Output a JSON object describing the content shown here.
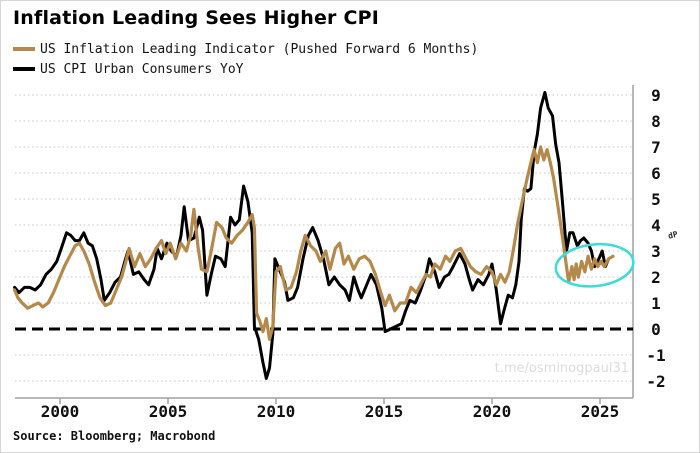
{
  "title": "Inflation Leading Sees Higher CPI",
  "legend": [
    {
      "label": "US Inflation Leading Indicator (Pushed Forward 6 Months)",
      "color": "#b5894a"
    },
    {
      "label": "US CPI Urban Consumers YoY",
      "color": "#000000"
    }
  ],
  "source": "Source: Bloomberg; Macrobond",
  "watermark": "t.me/osminogpaul31",
  "right_axis_glyph": "dP",
  "colors": {
    "tan_series": "#b5894a",
    "black_series": "#000000",
    "gridline": "#c4c4c4",
    "frame": "#a0a0a0",
    "highlight_ellipse": "#3ddbd9",
    "watermark": "#dcdcdc"
  },
  "chart_data": {
    "type": "line",
    "title": "Inflation Leading Sees Higher CPI",
    "xlabel": "",
    "ylabel": "",
    "x_ticks": [
      2000,
      2005,
      2010,
      2015,
      2020,
      2025
    ],
    "y_ticks": [
      9,
      8,
      7,
      6,
      5,
      4,
      3,
      2,
      1,
      0,
      -1,
      -2
    ],
    "xlim": [
      1997.9,
      2026.5
    ],
    "ylim": [
      -2.6,
      9.6
    ],
    "grid": "dotted horizontal gridlines at integers",
    "zero_line": "bold black dashed line at 0",
    "legend_position": "top-left",
    "highlight_ellipse": {
      "x_center_year": 2024.75,
      "y_center_value": 2.45,
      "rx_years": 1.8,
      "ry_values": 0.8,
      "color": "#3ddbd9"
    },
    "series": [
      {
        "name": "US CPI Urban Consumers YoY",
        "color": "#000000",
        "points": [
          [
            1997.9,
            1.6
          ],
          [
            1998.1,
            1.4
          ],
          [
            1998.35,
            1.6
          ],
          [
            1998.6,
            1.6
          ],
          [
            1998.85,
            1.5
          ],
          [
            1999.1,
            1.7
          ],
          [
            1999.35,
            2.1
          ],
          [
            1999.6,
            2.3
          ],
          [
            1999.85,
            2.6
          ],
          [
            2000.1,
            3.2
          ],
          [
            2000.3,
            3.7
          ],
          [
            2000.5,
            3.6
          ],
          [
            2000.7,
            3.4
          ],
          [
            2000.9,
            3.4
          ],
          [
            2001.1,
            3.7
          ],
          [
            2001.3,
            3.3
          ],
          [
            2001.5,
            3.2
          ],
          [
            2001.7,
            2.7
          ],
          [
            2001.9,
            1.9
          ],
          [
            2002.05,
            1.1
          ],
          [
            2002.3,
            1.4
          ],
          [
            2002.55,
            1.8
          ],
          [
            2002.8,
            2.0
          ],
          [
            2003.0,
            2.6
          ],
          [
            2003.15,
            3.0
          ],
          [
            2003.4,
            2.1
          ],
          [
            2003.65,
            2.2
          ],
          [
            2003.9,
            1.9
          ],
          [
            2004.1,
            1.7
          ],
          [
            2004.35,
            2.3
          ],
          [
            2004.5,
            3.1
          ],
          [
            2004.7,
            2.7
          ],
          [
            2004.95,
            3.3
          ],
          [
            2005.15,
            3.0
          ],
          [
            2005.4,
            2.8
          ],
          [
            2005.6,
            3.6
          ],
          [
            2005.75,
            4.7
          ],
          [
            2005.95,
            3.4
          ],
          [
            2006.2,
            3.5
          ],
          [
            2006.45,
            4.3
          ],
          [
            2006.6,
            3.8
          ],
          [
            2006.8,
            1.3
          ],
          [
            2007.0,
            2.1
          ],
          [
            2007.2,
            2.8
          ],
          [
            2007.45,
            2.7
          ],
          [
            2007.65,
            2.4
          ],
          [
            2007.9,
            4.3
          ],
          [
            2008.1,
            4.0
          ],
          [
            2008.3,
            4.2
          ],
          [
            2008.5,
            5.5
          ],
          [
            2008.7,
            4.9
          ],
          [
            2008.9,
            3.7
          ],
          [
            2009.0,
            0.1
          ],
          [
            2009.2,
            -0.4
          ],
          [
            2009.4,
            -1.3
          ],
          [
            2009.55,
            -1.9
          ],
          [
            2009.7,
            -1.5
          ],
          [
            2009.85,
            -0.2
          ],
          [
            2009.95,
            2.7
          ],
          [
            2010.15,
            2.3
          ],
          [
            2010.4,
            1.8
          ],
          [
            2010.55,
            1.1
          ],
          [
            2010.8,
            1.2
          ],
          [
            2011.0,
            1.6
          ],
          [
            2011.25,
            2.7
          ],
          [
            2011.5,
            3.6
          ],
          [
            2011.7,
            3.9
          ],
          [
            2011.95,
            3.4
          ],
          [
            2012.2,
            2.7
          ],
          [
            2012.45,
            1.7
          ],
          [
            2012.7,
            2.0
          ],
          [
            2012.95,
            1.7
          ],
          [
            2013.2,
            1.5
          ],
          [
            2013.4,
            1.1
          ],
          [
            2013.6,
            2.0
          ],
          [
            2013.8,
            1.5
          ],
          [
            2013.95,
            1.2
          ],
          [
            2014.15,
            1.6
          ],
          [
            2014.4,
            2.1
          ],
          [
            2014.65,
            1.7
          ],
          [
            2014.9,
            0.8
          ],
          [
            2015.05,
            -0.1
          ],
          [
            2015.3,
            0.0
          ],
          [
            2015.55,
            0.1
          ],
          [
            2015.8,
            0.2
          ],
          [
            2016.0,
            0.7
          ],
          [
            2016.2,
            1.1
          ],
          [
            2016.45,
            1.0
          ],
          [
            2016.7,
            1.5
          ],
          [
            2016.95,
            2.1
          ],
          [
            2017.1,
            2.7
          ],
          [
            2017.35,
            2.2
          ],
          [
            2017.55,
            1.6
          ],
          [
            2017.8,
            2.0
          ],
          [
            2018.0,
            2.1
          ],
          [
            2018.2,
            2.4
          ],
          [
            2018.5,
            2.9
          ],
          [
            2018.75,
            2.5
          ],
          [
            2018.95,
            1.9
          ],
          [
            2019.1,
            1.5
          ],
          [
            2019.35,
            1.9
          ],
          [
            2019.6,
            1.7
          ],
          [
            2019.85,
            2.1
          ],
          [
            2020.0,
            2.5
          ],
          [
            2020.2,
            1.5
          ],
          [
            2020.4,
            0.2
          ],
          [
            2020.55,
            0.7
          ],
          [
            2020.75,
            1.3
          ],
          [
            2020.95,
            1.2
          ],
          [
            2021.1,
            1.7
          ],
          [
            2021.25,
            2.6
          ],
          [
            2021.35,
            4.2
          ],
          [
            2021.5,
            5.4
          ],
          [
            2021.65,
            5.3
          ],
          [
            2021.8,
            5.4
          ],
          [
            2021.95,
            6.8
          ],
          [
            2022.1,
            7.5
          ],
          [
            2022.25,
            8.5
          ],
          [
            2022.45,
            9.1
          ],
          [
            2022.6,
            8.5
          ],
          [
            2022.8,
            8.2
          ],
          [
            2022.95,
            7.1
          ],
          [
            2023.1,
            6.4
          ],
          [
            2023.25,
            5.0
          ],
          [
            2023.45,
            3.0
          ],
          [
            2023.6,
            3.7
          ],
          [
            2023.75,
            3.7
          ],
          [
            2023.95,
            3.2
          ],
          [
            2024.1,
            3.4
          ],
          [
            2024.25,
            3.5
          ],
          [
            2024.45,
            3.3
          ],
          [
            2024.6,
            3.0
          ],
          [
            2024.75,
            2.4
          ],
          [
            2024.95,
            2.7
          ],
          [
            2025.1,
            3.0
          ],
          [
            2025.25,
            2.4
          ],
          [
            2025.4,
            2.7
          ]
        ]
      },
      {
        "name": "US Inflation Leading Indicator (Pushed Forward 6 Months)",
        "color": "#b5894a",
        "points": [
          [
            1997.9,
            1.5
          ],
          [
            1998.05,
            1.2
          ],
          [
            1998.25,
            1.0
          ],
          [
            1998.5,
            0.8
          ],
          [
            1998.75,
            0.9
          ],
          [
            1999.0,
            1.0
          ],
          [
            1999.2,
            0.85
          ],
          [
            1999.45,
            1.0
          ],
          [
            1999.7,
            1.4
          ],
          [
            1999.95,
            1.9
          ],
          [
            2000.2,
            2.4
          ],
          [
            2000.45,
            2.8
          ],
          [
            2000.7,
            3.2
          ],
          [
            2000.9,
            3.3
          ],
          [
            2001.1,
            3.0
          ],
          [
            2001.35,
            2.5
          ],
          [
            2001.6,
            1.8
          ],
          [
            2001.85,
            1.2
          ],
          [
            2002.1,
            0.9
          ],
          [
            2002.35,
            1.0
          ],
          [
            2002.6,
            1.5
          ],
          [
            2002.85,
            2.0
          ],
          [
            2003.05,
            2.6
          ],
          [
            2003.2,
            3.1
          ],
          [
            2003.45,
            2.4
          ],
          [
            2003.7,
            2.9
          ],
          [
            2003.95,
            2.4
          ],
          [
            2004.2,
            2.7
          ],
          [
            2004.45,
            3.1
          ],
          [
            2004.7,
            3.4
          ],
          [
            2004.9,
            2.9
          ],
          [
            2005.1,
            3.3
          ],
          [
            2005.35,
            2.7
          ],
          [
            2005.6,
            3.3
          ],
          [
            2005.85,
            3.0
          ],
          [
            2006.05,
            3.6
          ],
          [
            2006.2,
            4.6
          ],
          [
            2006.4,
            3.1
          ],
          [
            2006.55,
            2.3
          ],
          [
            2006.8,
            2.2
          ],
          [
            2007.0,
            3.0
          ],
          [
            2007.25,
            4.1
          ],
          [
            2007.5,
            3.9
          ],
          [
            2007.7,
            3.5
          ],
          [
            2007.95,
            3.3
          ],
          [
            2008.2,
            3.6
          ],
          [
            2008.45,
            3.8
          ],
          [
            2008.7,
            4.1
          ],
          [
            2008.9,
            4.4
          ],
          [
            2009.0,
            3.9
          ],
          [
            2009.1,
            0.6
          ],
          [
            2009.25,
            0.3
          ],
          [
            2009.4,
            -0.1
          ],
          [
            2009.55,
            0.4
          ],
          [
            2009.7,
            -0.4
          ],
          [
            2009.85,
            0.1
          ],
          [
            2010.0,
            2.2
          ],
          [
            2010.2,
            2.4
          ],
          [
            2010.45,
            1.5
          ],
          [
            2010.7,
            1.6
          ],
          [
            2010.95,
            2.2
          ],
          [
            2011.15,
            3.0
          ],
          [
            2011.35,
            3.6
          ],
          [
            2011.6,
            3.2
          ],
          [
            2011.85,
            3.0
          ],
          [
            2012.05,
            2.6
          ],
          [
            2012.3,
            3.0
          ],
          [
            2012.5,
            2.3
          ],
          [
            2012.75,
            3.1
          ],
          [
            2012.95,
            3.3
          ],
          [
            2013.15,
            2.5
          ],
          [
            2013.35,
            2.8
          ],
          [
            2013.6,
            2.3
          ],
          [
            2013.85,
            2.7
          ],
          [
            2014.1,
            2.8
          ],
          [
            2014.35,
            2.6
          ],
          [
            2014.6,
            2.1
          ],
          [
            2014.85,
            1.4
          ],
          [
            2015.05,
            0.9
          ],
          [
            2015.25,
            1.3
          ],
          [
            2015.5,
            0.7
          ],
          [
            2015.75,
            1.0
          ],
          [
            2016.0,
            1.0
          ],
          [
            2016.25,
            1.6
          ],
          [
            2016.5,
            1.4
          ],
          [
            2016.75,
            1.8
          ],
          [
            2016.95,
            2.1
          ],
          [
            2017.15,
            2.0
          ],
          [
            2017.35,
            2.5
          ],
          [
            2017.6,
            2.3
          ],
          [
            2017.85,
            2.8
          ],
          [
            2018.05,
            2.6
          ],
          [
            2018.3,
            3.0
          ],
          [
            2018.55,
            3.1
          ],
          [
            2018.8,
            2.7
          ],
          [
            2019.0,
            2.4
          ],
          [
            2019.25,
            2.2
          ],
          [
            2019.5,
            2.1
          ],
          [
            2019.75,
            2.4
          ],
          [
            2020.0,
            2.2
          ],
          [
            2020.2,
            1.7
          ],
          [
            2020.4,
            2.1
          ],
          [
            2020.6,
            1.8
          ],
          [
            2020.8,
            2.2
          ],
          [
            2021.0,
            3.1
          ],
          [
            2021.2,
            4.1
          ],
          [
            2021.4,
            4.9
          ],
          [
            2021.6,
            5.7
          ],
          [
            2021.8,
            6.4
          ],
          [
            2021.95,
            6.9
          ],
          [
            2022.1,
            6.4
          ],
          [
            2022.25,
            7.0
          ],
          [
            2022.4,
            6.5
          ],
          [
            2022.55,
            6.9
          ],
          [
            2022.7,
            6.4
          ],
          [
            2022.85,
            5.8
          ],
          [
            2023.0,
            5.0
          ],
          [
            2023.15,
            4.2
          ],
          [
            2023.3,
            3.3
          ],
          [
            2023.45,
            2.4
          ],
          [
            2023.55,
            1.8
          ],
          [
            2023.7,
            2.4
          ],
          [
            2023.8,
            1.9
          ],
          [
            2023.9,
            2.5
          ],
          [
            2024.0,
            2.0
          ],
          [
            2024.15,
            2.6
          ],
          [
            2024.3,
            2.2
          ],
          [
            2024.45,
            2.8
          ],
          [
            2024.6,
            2.3
          ],
          [
            2024.75,
            2.7
          ],
          [
            2024.9,
            2.4
          ],
          [
            2025.05,
            2.6
          ],
          [
            2025.2,
            2.4
          ],
          [
            2025.4,
            2.7
          ],
          [
            2025.6,
            2.8
          ]
        ]
      }
    ]
  }
}
